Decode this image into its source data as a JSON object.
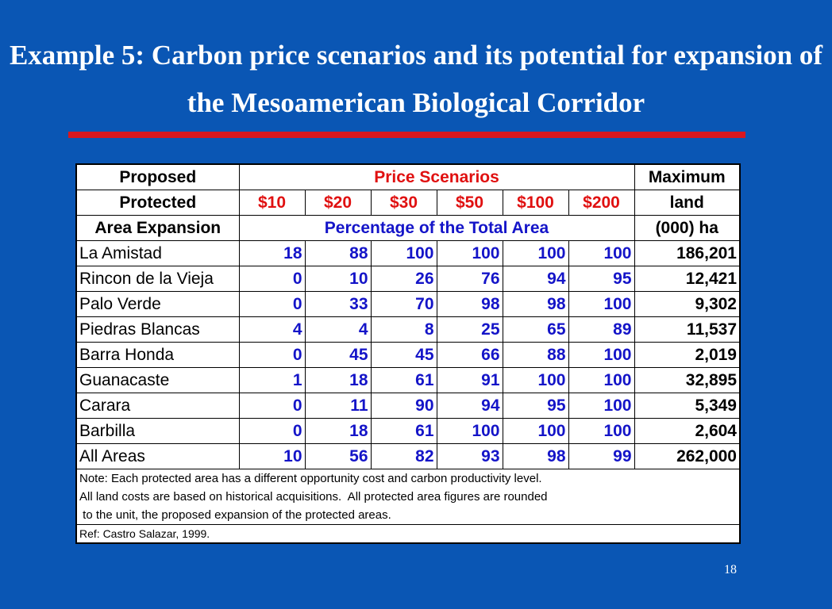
{
  "slide": {
    "title": "Example 5: Carbon price scenarios and its potential  for expansion of the Mesoamerican Biological Corridor",
    "page_number": "18"
  },
  "table": {
    "header": {
      "col1": [
        "Proposed",
        "Protected",
        "Area Expansion"
      ],
      "price_scenarios": "Price Scenarios",
      "prices": [
        "$10",
        "$20",
        "$30",
        "$50",
        "$100",
        "$200"
      ],
      "percentage_label": "Percentage of the Total Area",
      "last_col": [
        "Maximum",
        "land",
        "(000) ha"
      ]
    },
    "rows": [
      {
        "name": "La Amistad",
        "values": [
          "18",
          "88",
          "100",
          "100",
          "100",
          "100"
        ],
        "area": "186,201"
      },
      {
        "name": "Rincon de la Vieja",
        "values": [
          "0",
          "10",
          "26",
          "76",
          "94",
          "95"
        ],
        "area": "12,421"
      },
      {
        "name": "Palo Verde",
        "values": [
          "0",
          "33",
          "70",
          "98",
          "98",
          "100"
        ],
        "area": "9,302"
      },
      {
        "name": "Piedras Blancas",
        "values": [
          "4",
          "4",
          "8",
          "25",
          "65",
          "89"
        ],
        "area": "11,537"
      },
      {
        "name": "Barra Honda",
        "values": [
          "0",
          "45",
          "45",
          "66",
          "88",
          "100"
        ],
        "area": "2,019"
      },
      {
        "name": "Guanacaste",
        "values": [
          "1",
          "18",
          "61",
          "91",
          "100",
          "100"
        ],
        "area": "32,895"
      },
      {
        "name": "Carara",
        "values": [
          "0",
          "11",
          "90",
          "94",
          "95",
          "100"
        ],
        "area": "5,349"
      },
      {
        "name": "Barbilla",
        "values": [
          "0",
          "18",
          "61",
          "100",
          "100",
          "100"
        ],
        "area": "2,604"
      },
      {
        "name": "All Areas",
        "values": [
          "10",
          "56",
          "82",
          "93",
          "98",
          "99"
        ],
        "area": "262,000"
      }
    ],
    "notes": [
      "Note: Each protected area has a different opportunity cost and carbon productivity level.",
      "All land costs are based on historical acquisitions.  All protected area figures are rounded",
      " to the unit, the proposed expansion of the protected areas."
    ],
    "reference": "Ref:  Castro Salazar, 1999."
  },
  "colors": {
    "background": "#0a56b4",
    "title_rule": "#d8171f",
    "price_header": "#e01010",
    "value_text": "#1414c8"
  }
}
